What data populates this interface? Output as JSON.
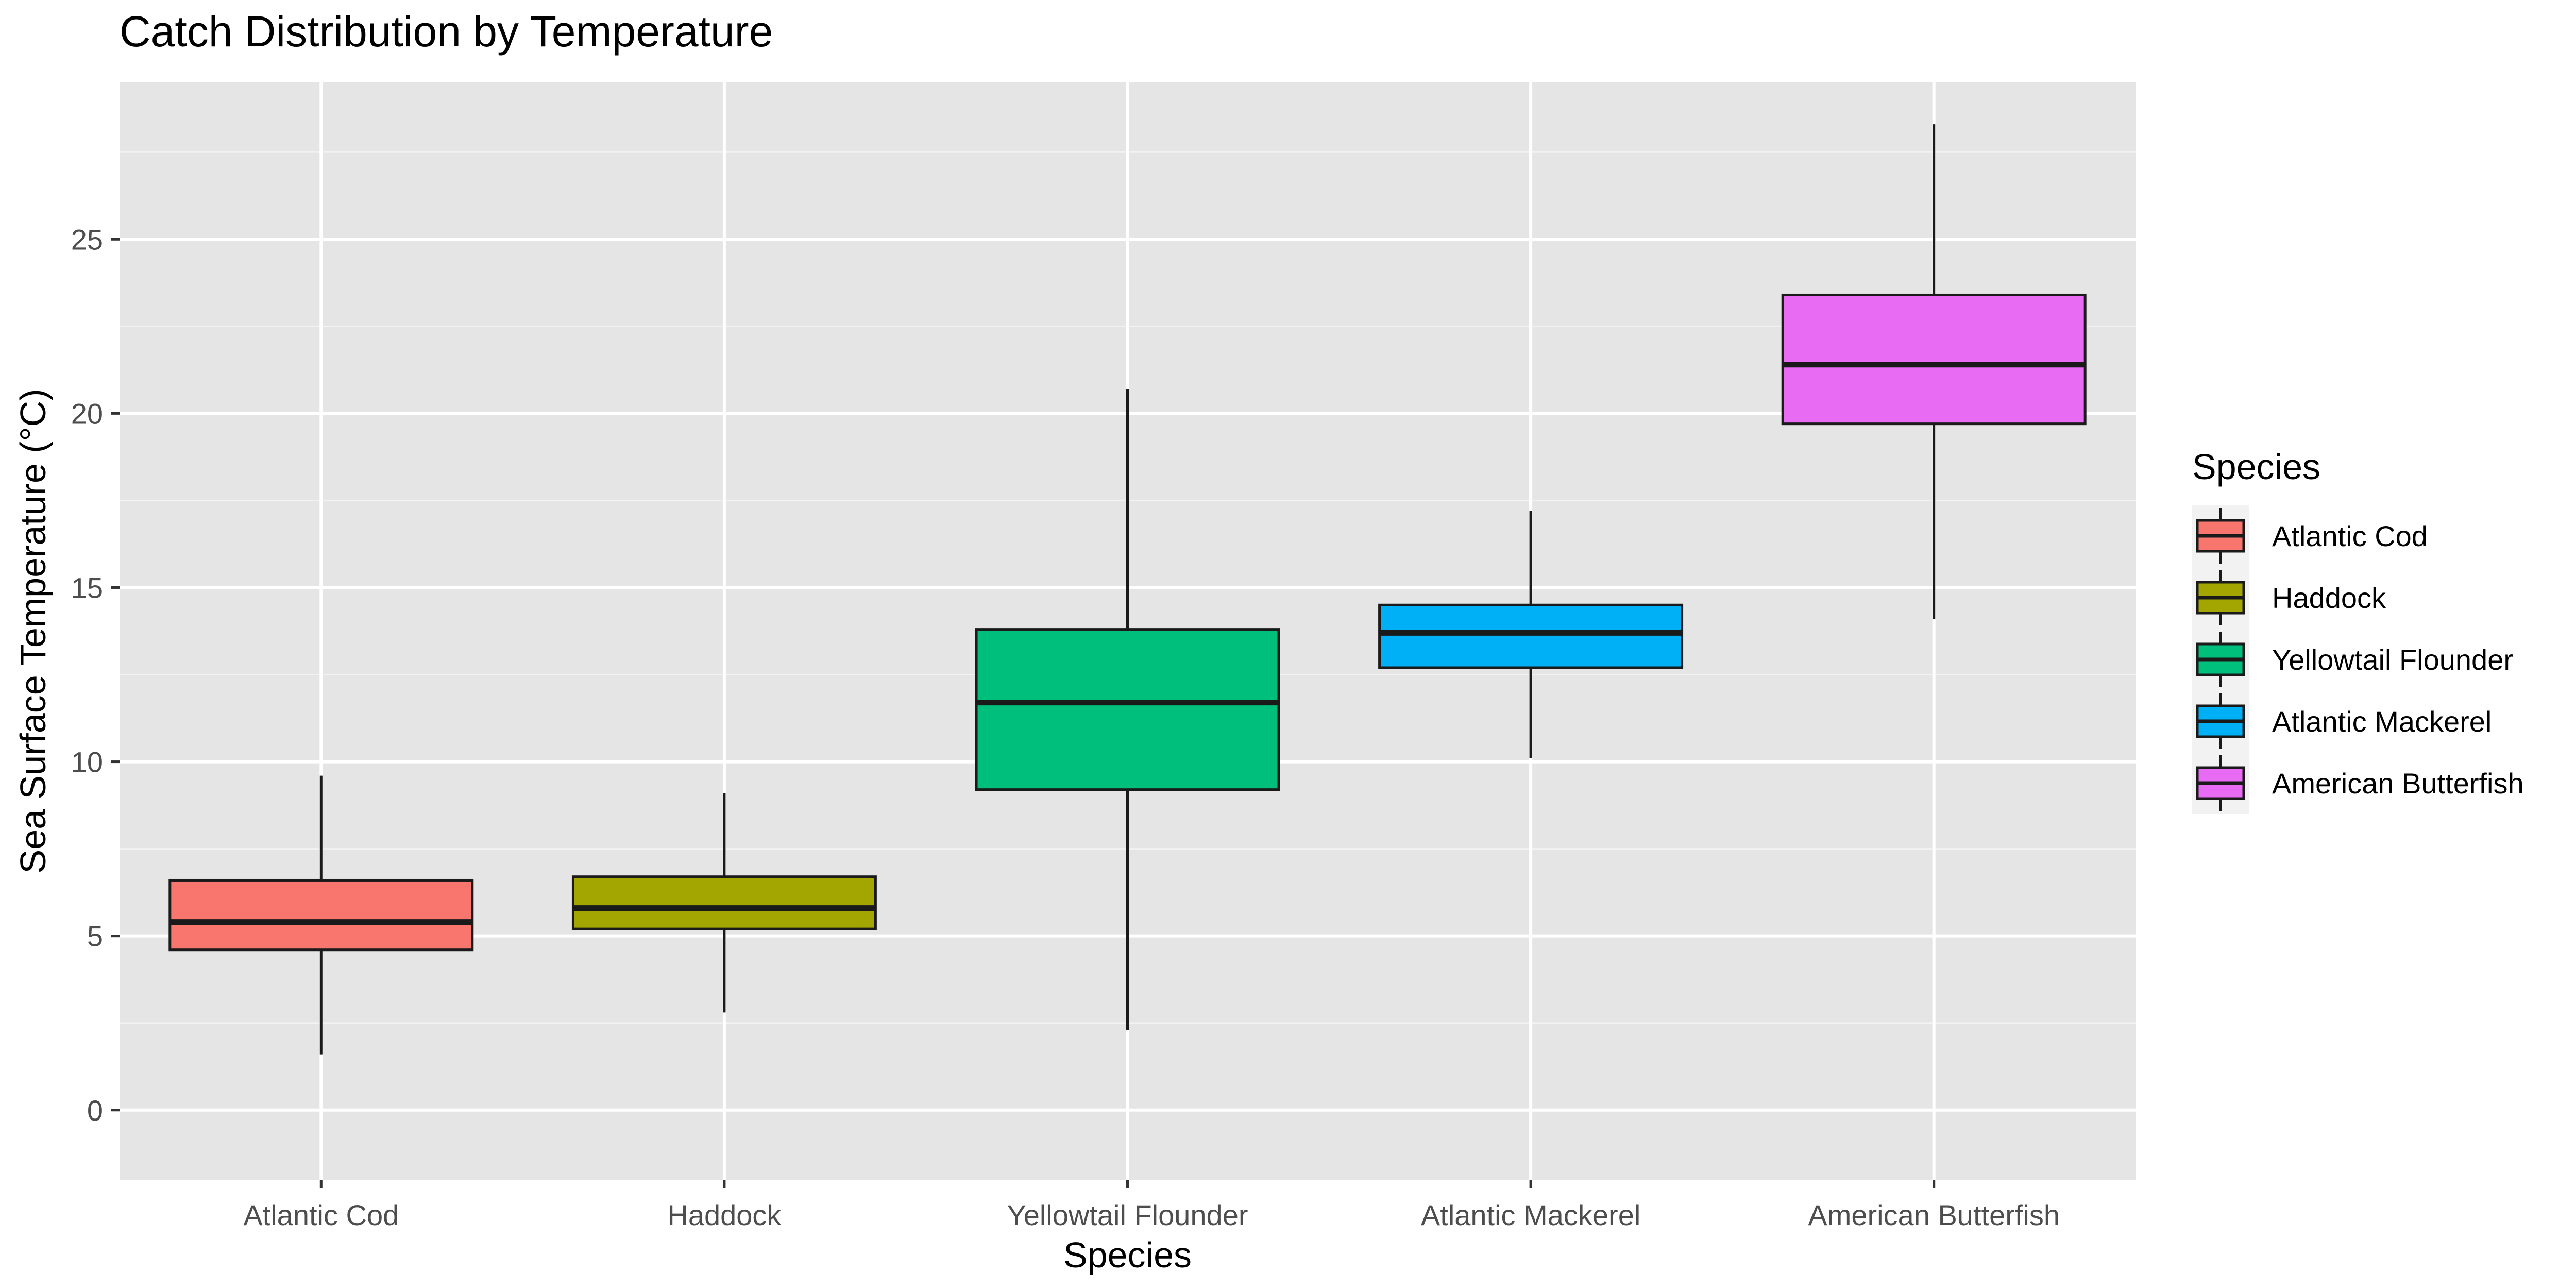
{
  "chart_data": {
    "type": "boxplot",
    "title": "Catch Distribution by Temperature",
    "xlabel": "Species",
    "ylabel": "Sea Surface Temperature (°C)",
    "ylim": [
      -2,
      29.5
    ],
    "yticks": [
      0,
      5,
      10,
      15,
      20,
      25
    ],
    "grid": true,
    "legend": {
      "title": "Species",
      "placement": "right"
    },
    "categories": [
      "Atlantic Cod",
      "Haddock",
      "Yellowtail Flounder",
      "Atlantic Mackerel",
      "American Butterfish"
    ],
    "series": [
      {
        "name": "Atlantic Cod",
        "color": "#F8766D",
        "min": 1.6,
        "q1": 4.6,
        "median": 5.4,
        "q3": 6.6,
        "max": 9.6
      },
      {
        "name": "Haddock",
        "color": "#A3A500",
        "min": 2.8,
        "q1": 5.2,
        "median": 5.8,
        "q3": 6.7,
        "max": 9.1
      },
      {
        "name": "Yellowtail Flounder",
        "color": "#00BF7D",
        "min": 2.3,
        "q1": 9.2,
        "median": 11.7,
        "q3": 13.8,
        "max": 20.7
      },
      {
        "name": "Atlantic Mackerel",
        "color": "#00B0F6",
        "min": 10.1,
        "q1": 12.7,
        "median": 13.7,
        "q3": 14.5,
        "max": 17.2
      },
      {
        "name": "American Butterfish",
        "color": "#E76BF3",
        "min": 14.1,
        "q1": 19.7,
        "median": 21.4,
        "q3": 23.4,
        "max": 28.3
      }
    ]
  }
}
